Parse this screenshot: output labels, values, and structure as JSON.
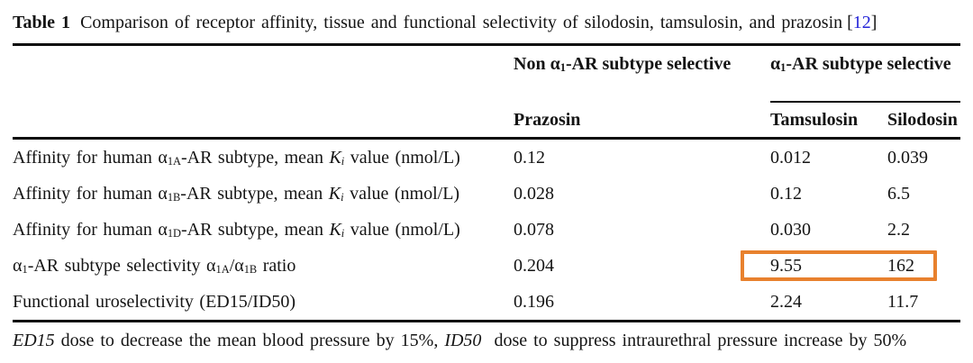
{
  "colors": {
    "highlight_box": "#e8812e",
    "citation": "#2424d8",
    "text": "#141414",
    "rule": "#0c0c0c"
  },
  "caption": {
    "label": "Table 1",
    "text": "Comparison of receptor affinity, tissue and functional selectivity of silodosin, tamsulosin, and prazosin",
    "citation_open": "[",
    "citation": "12",
    "citation_close": "]"
  },
  "table": {
    "group_headers": {
      "non_selective": [
        {
          "t": "Non α"
        },
        {
          "t": "1",
          "s": "sub"
        },
        {
          "t": "-AR subtype selective"
        }
      ],
      "selective": [
        {
          "t": "α"
        },
        {
          "t": "1",
          "s": "sub"
        },
        {
          "t": "-AR subtype selective"
        }
      ]
    },
    "columns": [
      "Prazosin",
      "Tamsulosin",
      "Silodosin"
    ],
    "rows": [
      {
        "label": [
          {
            "t": "Affinity for human α"
          },
          {
            "t": "1A",
            "s": "sub"
          },
          {
            "t": "-AR subtype, mean "
          },
          {
            "t": "K",
            "s": "i"
          },
          {
            "t": "i",
            "s": "subi"
          },
          {
            "t": " value (nmol/L)"
          }
        ],
        "values": [
          "0.12",
          "0.012",
          "0.039"
        ]
      },
      {
        "label": [
          {
            "t": "Affinity for human α"
          },
          {
            "t": "1B",
            "s": "sub"
          },
          {
            "t": "-AR subtype, mean "
          },
          {
            "t": "K",
            "s": "i"
          },
          {
            "t": "i",
            "s": "subi"
          },
          {
            "t": " value (nmol/L)"
          }
        ],
        "values": [
          "0.028",
          "0.12",
          "6.5"
        ]
      },
      {
        "label": [
          {
            "t": "Affinity for human α"
          },
          {
            "t": "1D",
            "s": "sub"
          },
          {
            "t": "-AR subtype, mean "
          },
          {
            "t": "K",
            "s": "i"
          },
          {
            "t": "i",
            "s": "subi"
          },
          {
            "t": " value (nmol/L)"
          }
        ],
        "values": [
          "0.078",
          "0.030",
          "2.2"
        ]
      },
      {
        "label": [
          {
            "t": "α"
          },
          {
            "t": "1",
            "s": "sub"
          },
          {
            "t": "-AR subtype selectivity α"
          },
          {
            "t": "1A",
            "s": "sub"
          },
          {
            "t": "/α"
          },
          {
            "t": "1B",
            "s": "sub"
          },
          {
            "t": " ratio"
          }
        ],
        "values": [
          "0.204",
          "9.55",
          "162"
        ],
        "highlighted_columns": [
          "Tamsulosin",
          "Silodosin"
        ]
      },
      {
        "label": [
          {
            "t": "Functional uroselectivity (ED15/ID50)"
          }
        ],
        "values": [
          "0.196",
          "2.24",
          "11.7"
        ]
      }
    ]
  },
  "footnote": {
    "segments": [
      {
        "t": "ED15",
        "s": "i"
      },
      {
        "t": " dose to decrease the mean blood pressure by 15%, "
      },
      {
        "t": "ID50",
        "s": "i"
      },
      {
        "t": "  dose to suppress intraurethral pressure increase by 50%"
      }
    ]
  }
}
